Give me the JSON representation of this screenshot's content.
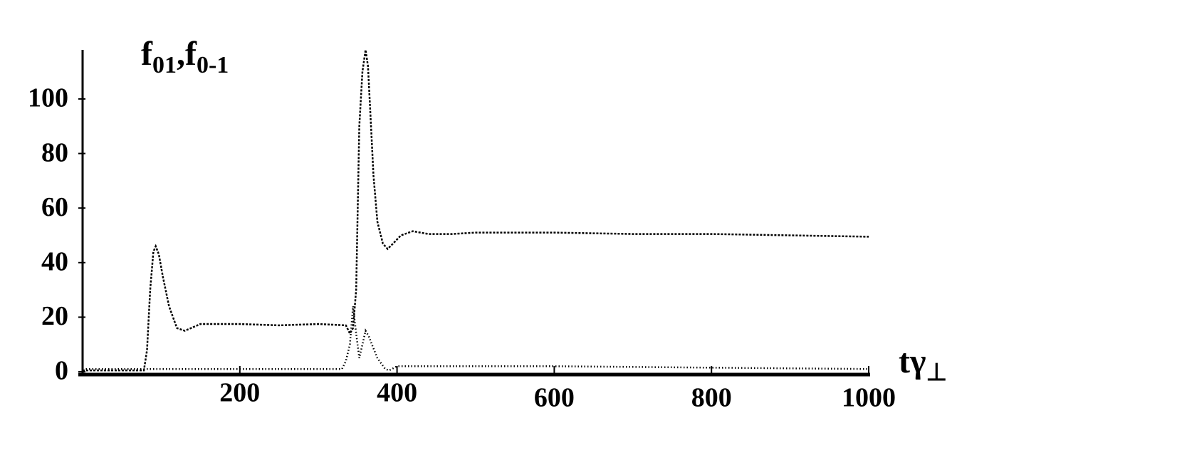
{
  "chart_data": {
    "type": "line",
    "ylabel": [
      {
        "text": "f"
      },
      {
        "text": "01",
        "sub": true
      },
      {
        "text": ",f"
      },
      {
        "text": "0-1",
        "sub": true
      }
    ],
    "xlabel": [
      {
        "text": "tγ"
      },
      {
        "text": "⊥",
        "sub": true
      }
    ],
    "xlim": [
      0,
      1000
    ],
    "xticks": [
      200,
      400,
      600,
      800,
      1000
    ],
    "ylim": [
      0,
      118
    ],
    "yticks": [
      0,
      20,
      40,
      60,
      80,
      100
    ],
    "series": [
      {
        "color": "#000000",
        "dash": "3,2",
        "x": [
          0,
          78,
          82,
          86,
          90,
          93,
          97,
          102,
          110,
          120,
          130,
          150,
          200,
          250,
          300,
          335,
          340,
          344,
          348,
          352,
          356,
          360,
          363,
          366,
          370,
          375,
          382,
          388,
          395,
          405,
          420,
          440,
          470,
          500,
          600,
          700,
          800,
          900,
          1000
        ],
        "values": [
          0.5,
          0.5,
          8,
          30,
          44,
          46,
          43,
          35,
          24,
          16,
          15,
          17.5,
          17.5,
          17,
          17.5,
          17,
          14,
          16,
          30,
          90,
          110,
          118,
          112,
          95,
          72,
          55,
          47,
          45,
          47,
          50,
          51.5,
          50.5,
          50.5,
          51,
          51,
          50.5,
          50.5,
          50,
          49.5
        ]
      },
      {
        "color": "#000000",
        "dash": "1.5,3",
        "x": [
          0,
          330,
          335,
          340,
          344,
          348,
          352,
          356,
          360,
          364,
          368,
          375,
          385,
          390,
          400,
          430,
          600,
          800,
          1000
        ],
        "values": [
          1,
          1,
          4,
          10,
          24,
          14,
          5,
          10,
          15,
          13,
          10,
          5,
          1,
          0.5,
          2,
          2,
          2,
          1.5,
          1
        ]
      }
    ]
  }
}
